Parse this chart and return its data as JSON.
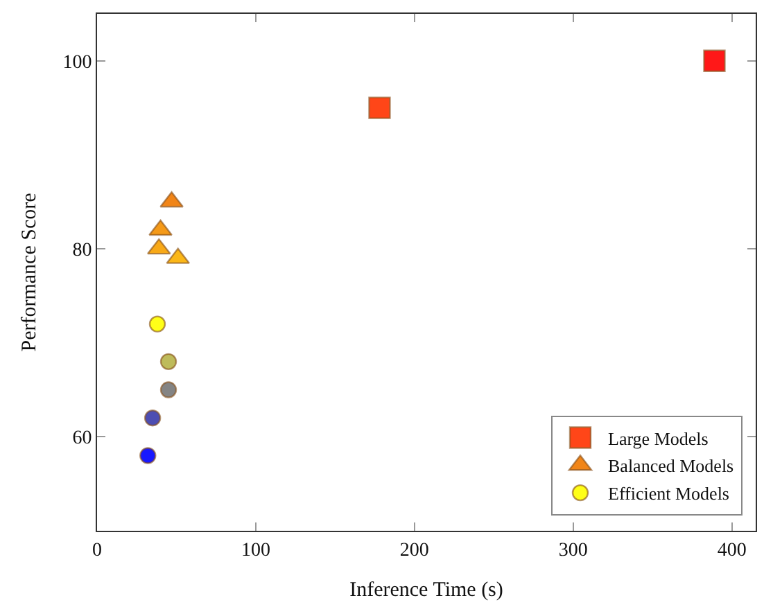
{
  "chart_data": {
    "type": "scatter",
    "xlabel": "Inference Time (s)",
    "ylabel": "Performance Score",
    "series": [
      {
        "name": "Large Models",
        "marker": "square",
        "x": [
          178,
          389
        ],
        "values": [
          95,
          100
        ],
        "colors": [
          "#ff3300",
          "#ff0000"
        ]
      },
      {
        "name": "Balanced Models",
        "marker": "triangle",
        "x": [
          47,
          40,
          39,
          51
        ],
        "values": [
          85,
          82,
          80,
          79
        ],
        "colors": [
          "#f07800",
          "#f59000",
          "#f8a000",
          "#fbb000"
        ]
      },
      {
        "name": "Efficient Models",
        "marker": "circle",
        "x": [
          38,
          45,
          45,
          35,
          32
        ],
        "values": [
          72,
          68,
          65,
          62,
          58
        ],
        "colors": [
          "#ffff00",
          "#b8b44a",
          "#777777",
          "#3a3aaa",
          "#0000ff"
        ]
      }
    ],
    "xlim": [
      0,
      415
    ],
    "ylim": [
      50,
      105
    ],
    "xticks": [
      0,
      100,
      200,
      300,
      400
    ],
    "yticks": [
      60,
      80,
      100
    ],
    "legend": "bottom right"
  }
}
